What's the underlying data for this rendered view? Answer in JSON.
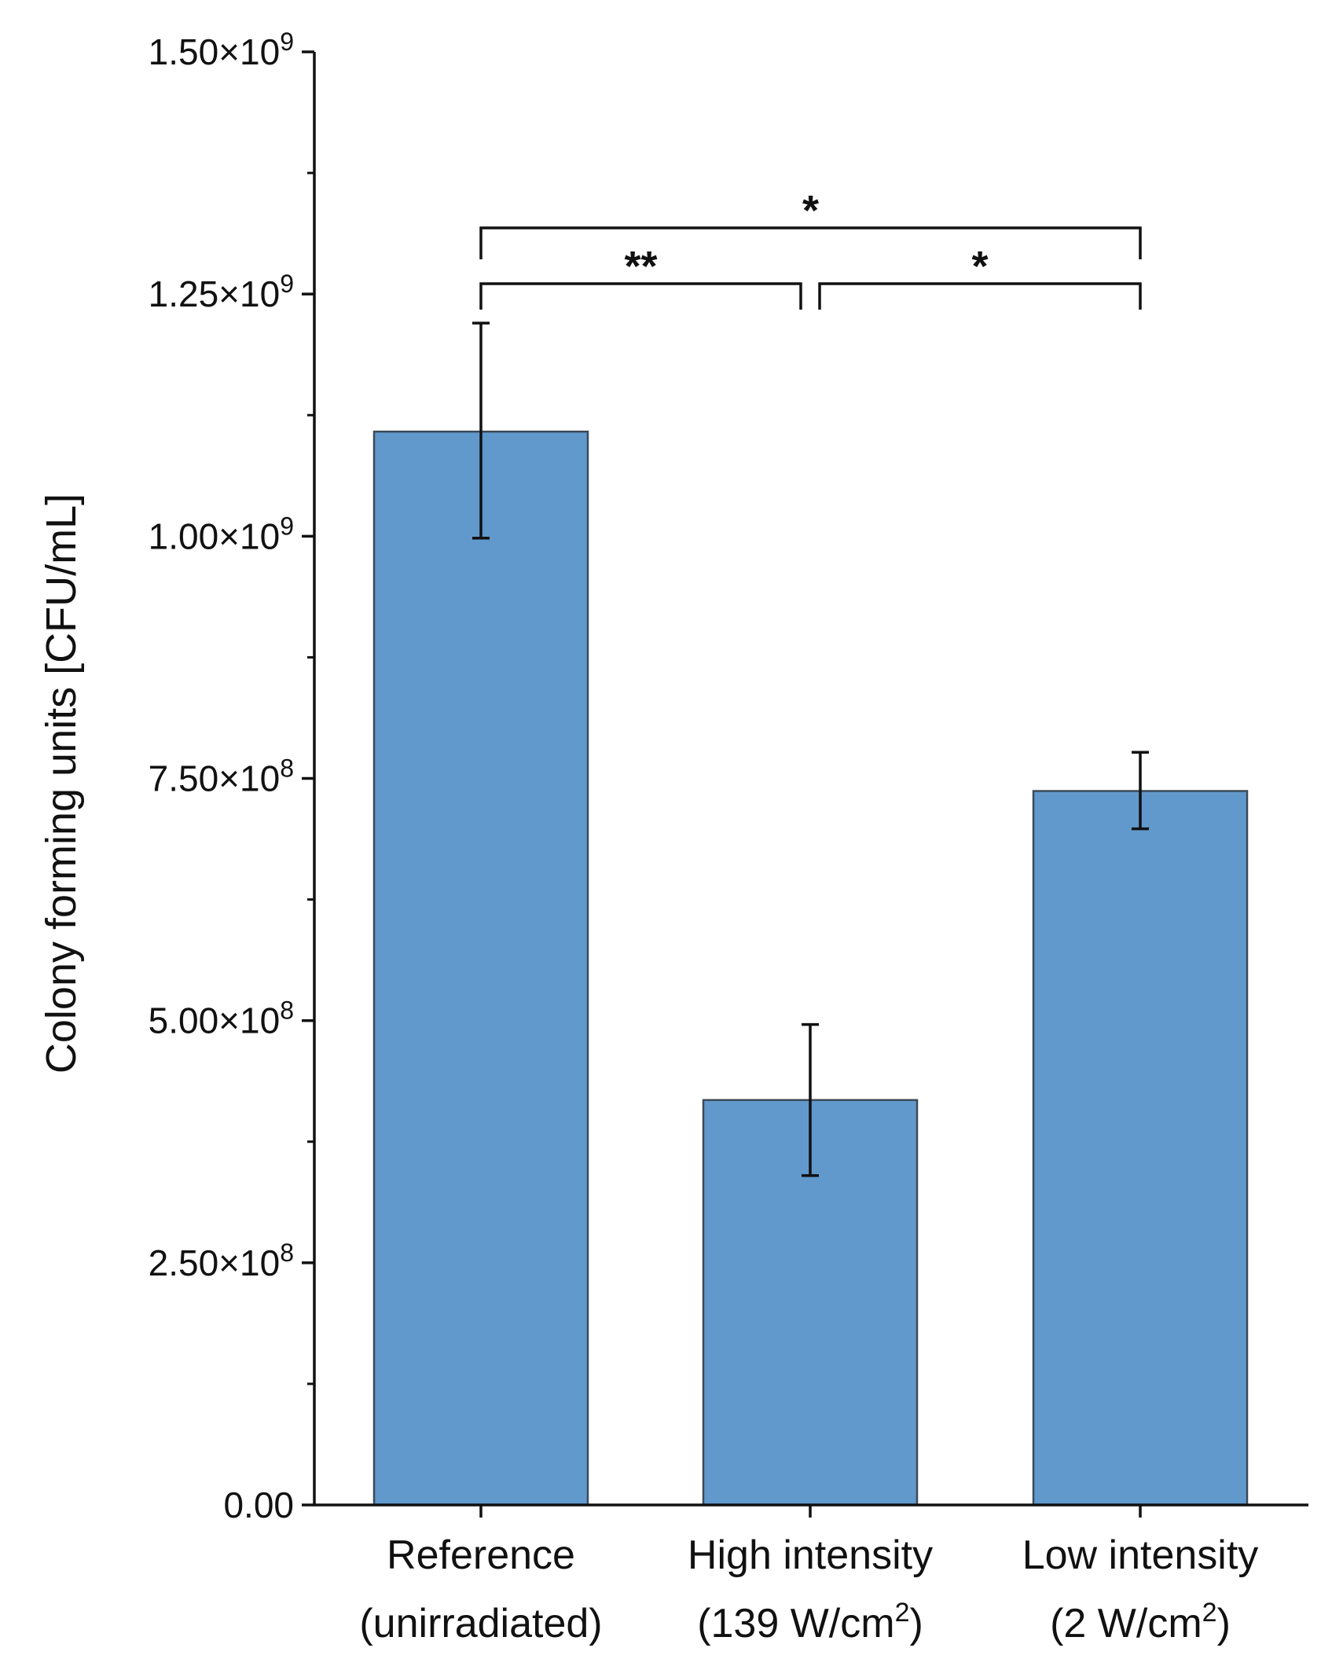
{
  "chart_data": {
    "type": "bar",
    "title": "",
    "xlabel": "",
    "ylabel": "Colony forming units [CFU/mL]",
    "ylim": [
      0,
      1500000000
    ],
    "grid": false,
    "y_ticks": [
      {
        "value": 0,
        "label": "0.00"
      },
      {
        "value": 250000000,
        "label": "2.50×10",
        "exp": "8"
      },
      {
        "value": 500000000,
        "label": "5.00×10",
        "exp": "8"
      },
      {
        "value": 750000000,
        "label": "7.50×10",
        "exp": "8"
      },
      {
        "value": 1000000000,
        "label": "1.00×10",
        "exp": "9"
      },
      {
        "value": 1250000000,
        "label": "1.25×10",
        "exp": "9"
      },
      {
        "value": 1500000000,
        "label": "1.50×10",
        "exp": "9"
      }
    ],
    "y_minor_ticks": [
      125000000,
      375000000,
      625000000,
      875000000,
      1125000000,
      1375000000
    ],
    "categories": [
      {
        "line1": "Reference",
        "line2": "(unirradiated)",
        "sup": "",
        "line2_end": ""
      },
      {
        "line1": "High intensity",
        "line2": "(139 W/cm",
        "sup": "2",
        "line2_end": ")"
      },
      {
        "line1": "Low intensity",
        "line2": "(2 W/cm",
        "sup": "2",
        "line2_end": ")"
      }
    ],
    "values": [
      1108000000,
      418000000,
      737000000
    ],
    "errors": [
      {
        "low": 998000000,
        "high": 1220000000
      },
      {
        "low": 340000000,
        "high": 496000000
      },
      {
        "low": 698000000,
        "high": 777000000
      }
    ],
    "bar_color": "#6199cc",
    "bar_edge_color": "#3c4a58",
    "significance": [
      {
        "from": 0,
        "to": 2,
        "label": "*",
        "level": 2
      },
      {
        "from": 0,
        "to": 1,
        "label": "**",
        "level": 1
      },
      {
        "from": 1,
        "to": 2,
        "label": "*",
        "level": 1
      }
    ]
  }
}
